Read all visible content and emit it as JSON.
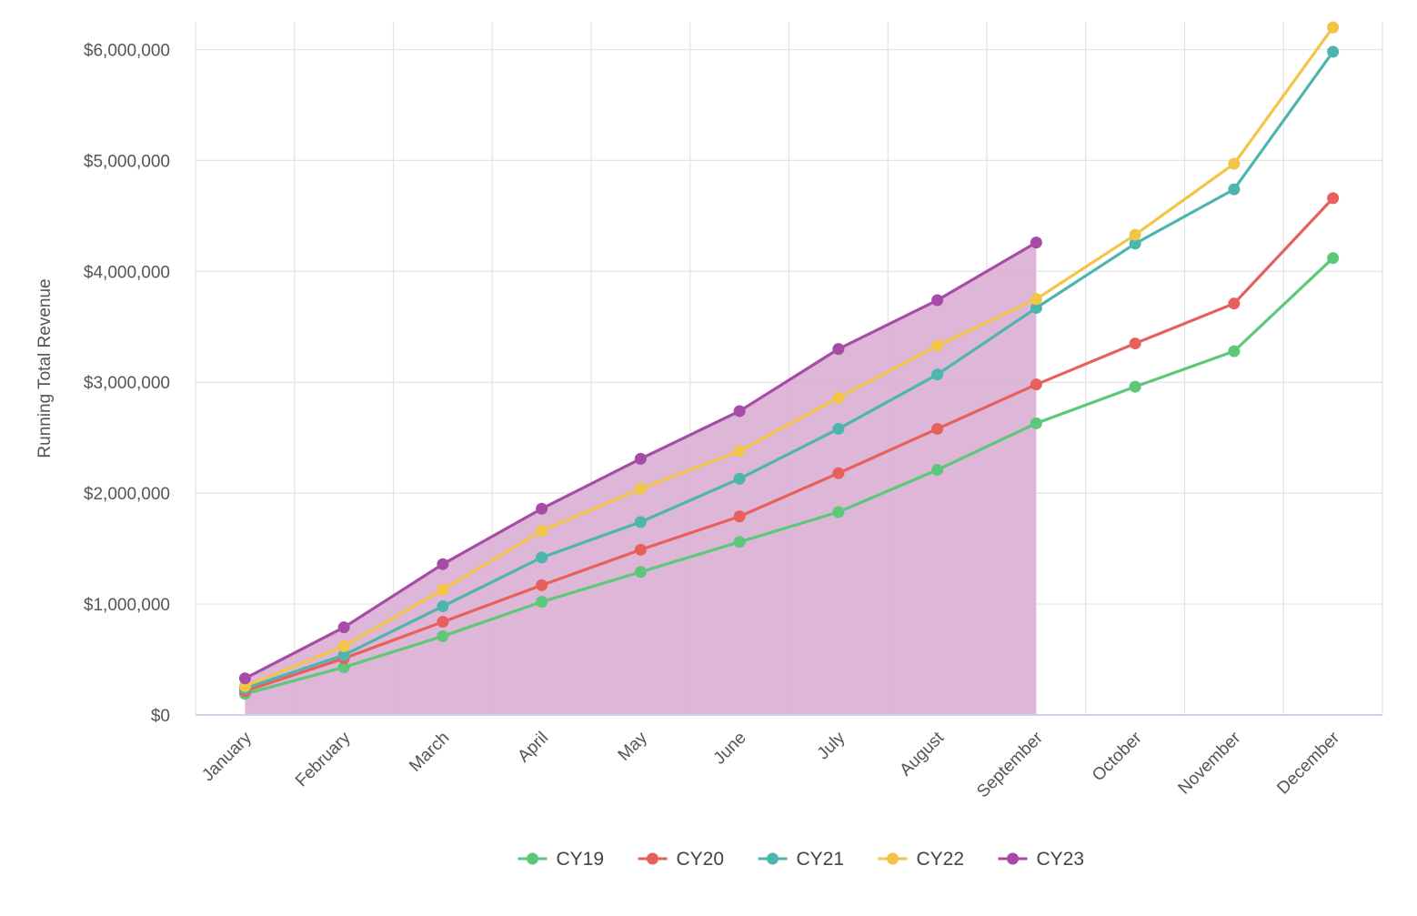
{
  "chart_data": {
    "type": "line",
    "title": "",
    "xlabel": "",
    "ylabel": "Running Total Revenue",
    "ylim": [
      0,
      6250000
    ],
    "y_ticks": [
      0,
      1000000,
      2000000,
      3000000,
      4000000,
      5000000,
      6000000
    ],
    "y_tick_labels": [
      "$0",
      "$1,000,000",
      "$2,000,000",
      "$3,000,000",
      "$4,000,000",
      "$5,000,000",
      "$6,000,000"
    ],
    "grid": true,
    "legend_position": "bottom-center",
    "categories": [
      "January",
      "February",
      "March",
      "April",
      "May",
      "June",
      "July",
      "August",
      "September",
      "October",
      "November",
      "December"
    ],
    "series": [
      {
        "name": "CY19",
        "color": "#5dc87a",
        "filled": false,
        "values": [
          190000,
          430000,
          710000,
          1020000,
          1290000,
          1560000,
          1830000,
          2210000,
          2630000,
          2960000,
          3280000,
          4120000
        ]
      },
      {
        "name": "CY20",
        "color": "#e8605c",
        "filled": false,
        "values": [
          215000,
          510000,
          840000,
          1170000,
          1490000,
          1790000,
          2180000,
          2580000,
          2980000,
          3350000,
          3710000,
          4660000
        ]
      },
      {
        "name": "CY21",
        "color": "#4db6ac",
        "filled": false,
        "values": [
          240000,
          540000,
          980000,
          1420000,
          1740000,
          2130000,
          2580000,
          3070000,
          3670000,
          4250000,
          4740000,
          5980000
        ]
      },
      {
        "name": "CY22",
        "color": "#f2c447",
        "filled": false,
        "values": [
          260000,
          620000,
          1130000,
          1660000,
          2040000,
          2380000,
          2860000,
          3330000,
          3750000,
          4330000,
          4970000,
          6200000
        ]
      },
      {
        "name": "CY23",
        "color": "#a64ca6",
        "filled": true,
        "fill_color": "#dcb2d6",
        "values": [
          330000,
          790000,
          1360000,
          1860000,
          2310000,
          2740000,
          3300000,
          3740000,
          4260000,
          null,
          null,
          null
        ]
      }
    ]
  }
}
